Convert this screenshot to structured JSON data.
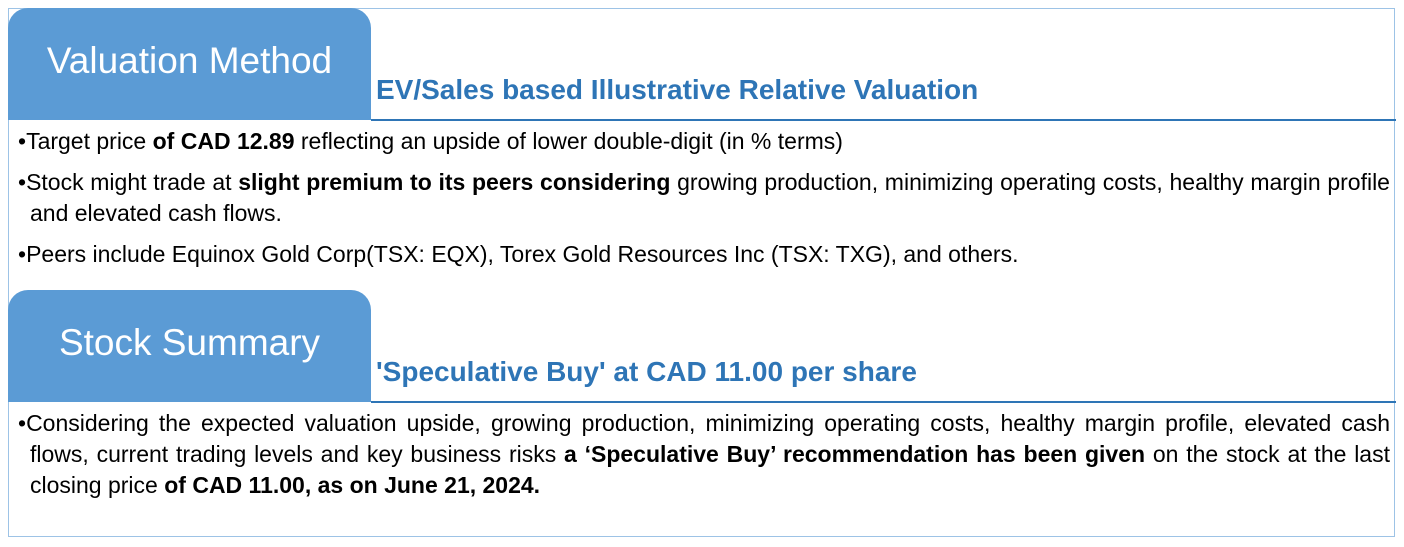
{
  "valuation": {
    "tab_label": "Valuation Method",
    "heading": "EV/Sales based Illustrative Relative Valuation",
    "bullets": [
      [
        {
          "t": "Target price ",
          "b": false
        },
        {
          "t": "of CAD 12.89",
          "b": true
        },
        {
          "t": " reflecting an upside of lower double-digit (in % terms)",
          "b": false
        }
      ],
      [
        {
          "t": "Stock might trade at ",
          "b": false
        },
        {
          "t": "slight premium to its peers considering",
          "b": true
        },
        {
          "t": " growing production, minimizing operating costs, healthy margin profile and elevated cash flows.",
          "b": false
        }
      ],
      [
        {
          "t": "Peers include Equinox Gold Corp(TSX: EQX), Torex Gold Resources Inc (TSX: TXG), and others.",
          "b": false
        }
      ]
    ]
  },
  "summary": {
    "tab_label": "Stock Summary",
    "heading": "'Speculative Buy' at CAD 11.00 per share",
    "bullets": [
      [
        {
          "t": "Considering the expected valuation upside, growing production, minimizing operating costs, healthy margin profile, elevated cash flows, current trading levels and key business risks ",
          "b": false
        },
        {
          "t": "a ‘Speculative Buy’ recommendation has been given",
          "b": true
        },
        {
          "t": " on the stock at the last closing price ",
          "b": false
        },
        {
          "t": "of CAD 11.00, as on June 21, 2024.",
          "b": true
        }
      ]
    ]
  },
  "colors": {
    "tab": "#5b9bd5",
    "heading": "#2e75b6",
    "border": "#9dc3e6"
  }
}
